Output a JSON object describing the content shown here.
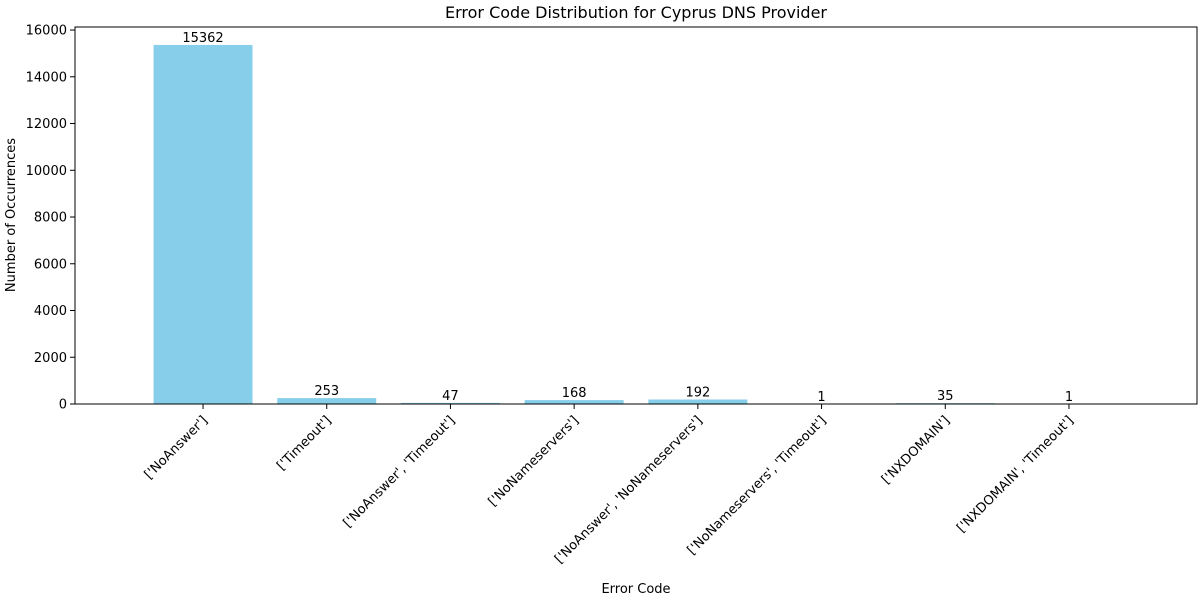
{
  "chart_data": {
    "type": "bar",
    "title": "Error Code Distribution for Cyprus DNS Provider",
    "xlabel": "Error Code",
    "ylabel": "Number of Occurrences",
    "categories": [
      "['NoAnswer']",
      "['Timeout']",
      "['NoAnswer', 'Timeout']",
      "['NoNameservers']",
      "['NoAnswer', 'NoNameservers']",
      "['NoNameservers', 'Timeout']",
      "['NXDOMAIN']",
      "['NXDOMAIN', 'Timeout']"
    ],
    "values": [
      15362,
      253,
      47,
      168,
      192,
      1,
      35,
      1
    ],
    "data_labels": [
      "15362",
      "253",
      "47",
      "168",
      "192",
      "1",
      "35",
      "1"
    ],
    "yticks": [
      0,
      2000,
      4000,
      6000,
      8000,
      10000,
      12000,
      14000,
      16000
    ],
    "ytick_labels": [
      "0",
      "2000",
      "4000",
      "6000",
      "8000",
      "10000",
      "12000",
      "14000",
      "16000"
    ],
    "ylim": [
      0,
      16130
    ],
    "grid": false,
    "colors": {
      "bar": "#87ceeb",
      "axis": "#000000"
    }
  }
}
